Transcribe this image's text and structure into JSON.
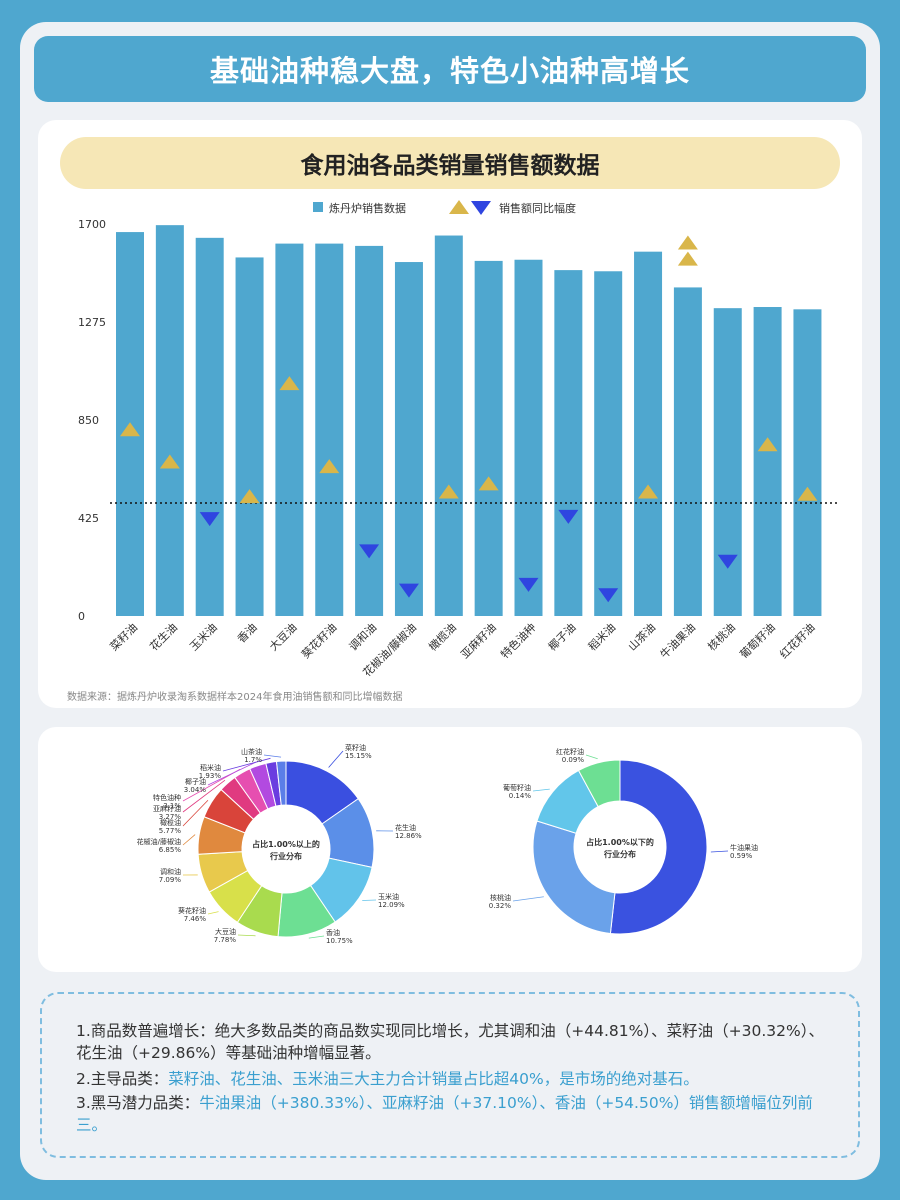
{
  "header": {
    "title": "基础油种稳大盘，特色小油种高增长"
  },
  "chart_card": {
    "subtitle": "食用油各品类销量销售额数据",
    "source": "数据来源：据炼丹炉收录淘系数据样本2024年食用油销售额和同比增幅数据"
  },
  "colors": {
    "bar": "#4fa7cf",
    "up": "#d9b64a",
    "down": "#2f45e0"
  },
  "chart_data": [
    {
      "type": "bar",
      "title": "食用油各品类销量销售额数据",
      "legend": [
        "炼丹炉销售数据",
        "销售额同比幅度"
      ],
      "legend_position": "top",
      "categories": [
        "菜籽油",
        "花生油",
        "玉米油",
        "香油",
        "大豆油",
        "葵花籽油",
        "调和油",
        "花椒油/藤椒油",
        "橄榄油",
        "亚麻籽油",
        "特色油种",
        "椰子油",
        "稻米油",
        "山茶油",
        "牛油果油",
        "核桃油",
        "葡萄籽油",
        "红花籽油"
      ],
      "ylim": [
        0,
        1700
      ],
      "yticks": [
        0,
        425,
        850,
        1275,
        1700
      ],
      "values": [
        1665,
        1695,
        1640,
        1555,
        1615,
        1615,
        1605,
        1535,
        1650,
        1540,
        1545,
        1500,
        1495,
        1580,
        1425,
        1335,
        1340,
        1330
      ],
      "markers": [
        {
          "dir": "up",
          "value": 810
        },
        {
          "dir": "up",
          "value": 670
        },
        {
          "dir": "down",
          "value": 420
        },
        {
          "dir": "up",
          "value": 520
        },
        {
          "dir": "up",
          "value": 1010
        },
        {
          "dir": "up",
          "value": 650
        },
        {
          "dir": "down",
          "value": 280
        },
        {
          "dir": "down",
          "value": 110
        },
        {
          "dir": "up",
          "value": 540
        },
        {
          "dir": "up",
          "value": 575
        },
        {
          "dir": "down",
          "value": 135
        },
        {
          "dir": "down",
          "value": 430
        },
        {
          "dir": "down",
          "value": 90
        },
        {
          "dir": "up",
          "value": 540
        },
        {
          "dir": "up",
          "value": 1620
        },
        {
          "dir": "down",
          "value": 235
        },
        {
          "dir": "up",
          "value": 745
        },
        {
          "dir": "up",
          "value": 530
        }
      ],
      "second_marker": {
        "index": 14,
        "dir": "up",
        "value": 1550
      },
      "reference_line": 490
    },
    {
      "type": "pie",
      "title": "占比1.00%以上的行业分布",
      "labels": [
        "菜籽油",
        "花生油",
        "玉米油",
        "香油",
        "大豆油",
        "葵花籽油",
        "调和油",
        "花椒油/藤椒油",
        "橄榄油",
        "亚麻籽油",
        "特色油种",
        "椰子油",
        "稻米油",
        "山茶油"
      ],
      "values": [
        15.15,
        12.86,
        12.09,
        10.75,
        7.78,
        7.46,
        7.09,
        6.85,
        5.77,
        3.27,
        3.1,
        3.04,
        1.93,
        1.7
      ],
      "value_labels": [
        "15.15%",
        "12.86%",
        "12.09%",
        "10.75%",
        "7.78%",
        "7.46%",
        "7.09%",
        "6.85%",
        "5.77%",
        "3.27%",
        "3.1%",
        "3.04%",
        "1.93%",
        "1.7%"
      ],
      "colors": [
        "#3a4fe0",
        "#5b8fe8",
        "#62c3ea",
        "#6ddf93",
        "#a9db4e",
        "#d8e04a",
        "#e8c94c",
        "#e0893e",
        "#d9443a",
        "#e03a80",
        "#e64fb0",
        "#b24ae0",
        "#6a3de0",
        "#5b7ee8"
      ]
    },
    {
      "type": "pie",
      "title": "占比1.00%以下的行业分布",
      "labels": [
        "牛油果油",
        "核桃油",
        "葡萄籽油",
        "红花籽油"
      ],
      "values": [
        0.59,
        0.32,
        0.14,
        0.09
      ],
      "value_labels": [
        "0.59%",
        "0.32%",
        "0.14%",
        "0.09%"
      ],
      "colors": [
        "#3a52e0",
        "#6aa2ea",
        "#62c6ea",
        "#6ddf93"
      ]
    }
  ],
  "notes": {
    "n1": "1.商品数普遍增长：绝大多数品类的商品数实现同比增长，尤其调和油（+44.81%）、菜籽油（+30.32%）、花生油（+29.86%）等基础油种增幅显著。",
    "n2_prefix": "2.主导品类：",
    "n2_hl": "菜籽油、花生油、玉米油三大主力合计销量占比超40%，是市场的绝对基石。",
    "n3_prefix": "3.黑马潜力品类：",
    "n3_hl": "牛油果油（+380.33%）、亚麻籽油（+37.10%）、香油（+54.50%）销售额增幅位列前三。"
  }
}
